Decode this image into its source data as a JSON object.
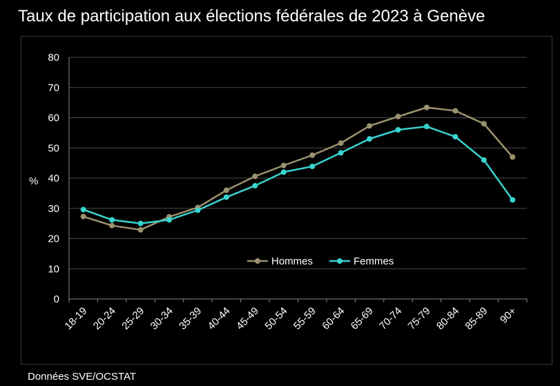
{
  "source": "Données SVE/OCSTAT",
  "chart_data": {
    "type": "line",
    "title": "Taux de participation aux élections fédérales de 2023 à Genève",
    "xlabel": "",
    "ylabel": "%",
    "ylim": [
      0,
      80
    ],
    "yticks": [
      0,
      10,
      20,
      30,
      40,
      50,
      60,
      70,
      80
    ],
    "grid": true,
    "legend_position": "bottom-center",
    "categories": [
      "18-19",
      "20-24",
      "25-29",
      "30-34",
      "35-39",
      "40-44",
      "45-49",
      "50-54",
      "55-59",
      "60-64",
      "65-69",
      "70-74",
      "75-79",
      "80-84",
      "85-89",
      "90+"
    ],
    "series": [
      {
        "name": "Hommes",
        "color": "#9c9270",
        "values": [
          27.3,
          24.3,
          22.9,
          27.2,
          30.3,
          36.0,
          40.6,
          44.2,
          47.6,
          51.6,
          57.3,
          60.4,
          63.4,
          62.3,
          58.0,
          47.0
        ]
      },
      {
        "name": "Femmes",
        "color": "#38d4d0",
        "values": [
          29.6,
          26.2,
          25.0,
          26.2,
          29.4,
          33.7,
          37.5,
          42.0,
          43.9,
          48.4,
          53.0,
          56.0,
          57.1,
          53.7,
          46.0,
          32.8
        ]
      }
    ]
  }
}
